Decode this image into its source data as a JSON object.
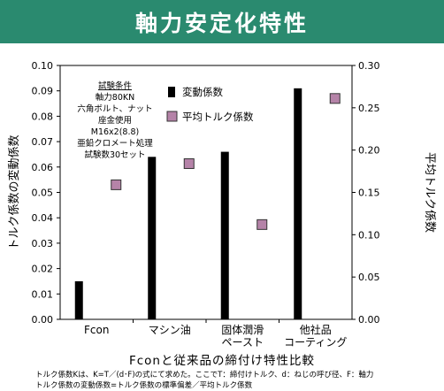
{
  "title": "軸力安定化特性",
  "subtitle": "Fconと従来品の締付け特性比較",
  "footnote": [
    "トルク係数Kは、K=T／(d･F)の式にて求めた。ここでT：締付けトルク、d：ねじの呼び径、F：軸力",
    "トルク係数の変動係数=トルク係数の標準偏差／平均トルク係数"
  ],
  "test_conditions": {
    "heading": "試験条件",
    "lines": [
      "軸力80KN",
      "六角ボルト、ナット",
      "座金使用",
      "M16x2(8.8)",
      "亜鉛クロメート処理",
      "試験数30セット"
    ]
  },
  "chart_data": {
    "type": "bar+scatter",
    "categories": [
      [
        "Fcon"
      ],
      [
        "マシン油"
      ],
      [
        "固体潤滑",
        "ペースト"
      ],
      [
        "他社品",
        "コーティング"
      ]
    ],
    "series": [
      {
        "name": "変動係数",
        "axis": "left",
        "marker": "bar",
        "color": "#000000",
        "values": [
          0.015,
          0.064,
          0.066,
          0.091
        ]
      },
      {
        "name": "平均トルク係数",
        "axis": "right",
        "marker": "square",
        "color": "#b583a8",
        "values": [
          0.159,
          0.184,
          0.112,
          0.261
        ]
      }
    ],
    "ylabel_left": "トルク係数の変動係数",
    "ylabel_right": "平均トルク係数",
    "ylim_left": [
      0,
      0.1
    ],
    "ylim_right": [
      0,
      0.3
    ],
    "yticks_left": [
      "0.00",
      "0.01",
      "0.02",
      "0.03",
      "0.04",
      "0.05",
      "0.06",
      "0.07",
      "0.08",
      "0.09",
      "0.10"
    ],
    "yticks_right": [
      "0.00",
      "0.05",
      "0.10",
      "0.15",
      "0.20",
      "0.25",
      "0.30"
    ],
    "legend_position": "top-center",
    "grid": false
  }
}
